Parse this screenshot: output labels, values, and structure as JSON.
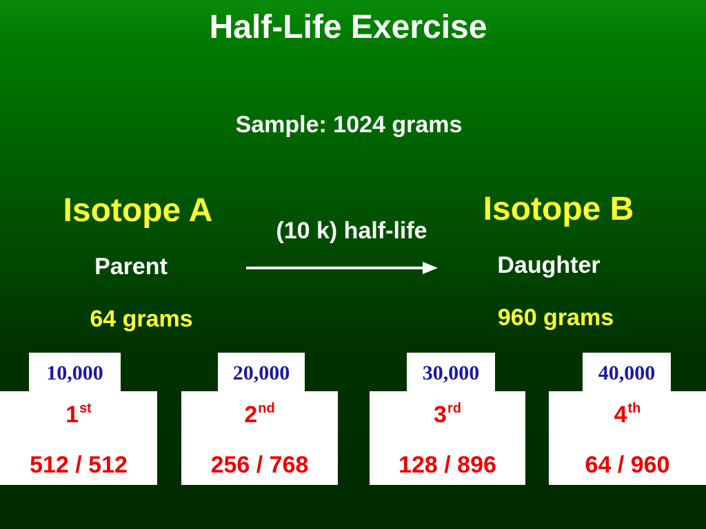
{
  "title": "Half-Life Exercise",
  "sample": "Sample:  1024 grams",
  "isotope_a": {
    "name": "Isotope A",
    "role": "Parent",
    "grams": "64 grams"
  },
  "isotope_b": {
    "name": "Isotope B",
    "role": "Daughter",
    "grams": "960 grams"
  },
  "half_life_label": "(10 k) half-life",
  "colors": {
    "heading": "#ffffff",
    "isotope": "#ffff33",
    "years": "#1a1aa0",
    "ordinals": "#ee0000",
    "background_top": "#0a8a0a",
    "background_bottom": "#002a00"
  },
  "icons": {
    "arrow": "right-arrow-icon"
  },
  "half_lives": [
    {
      "years": "10,000",
      "ordinal": "1",
      "suffix": "st",
      "ratio": "512 / 512"
    },
    {
      "years": "20,000",
      "ordinal": "2",
      "suffix": "nd",
      "ratio": "256 / 768"
    },
    {
      "years": "30,000",
      "ordinal": "3",
      "suffix": "rd",
      "ratio": "128 / 896"
    },
    {
      "years": "40,000",
      "ordinal": "4",
      "suffix": "th",
      "ratio": "64 / 960"
    }
  ]
}
